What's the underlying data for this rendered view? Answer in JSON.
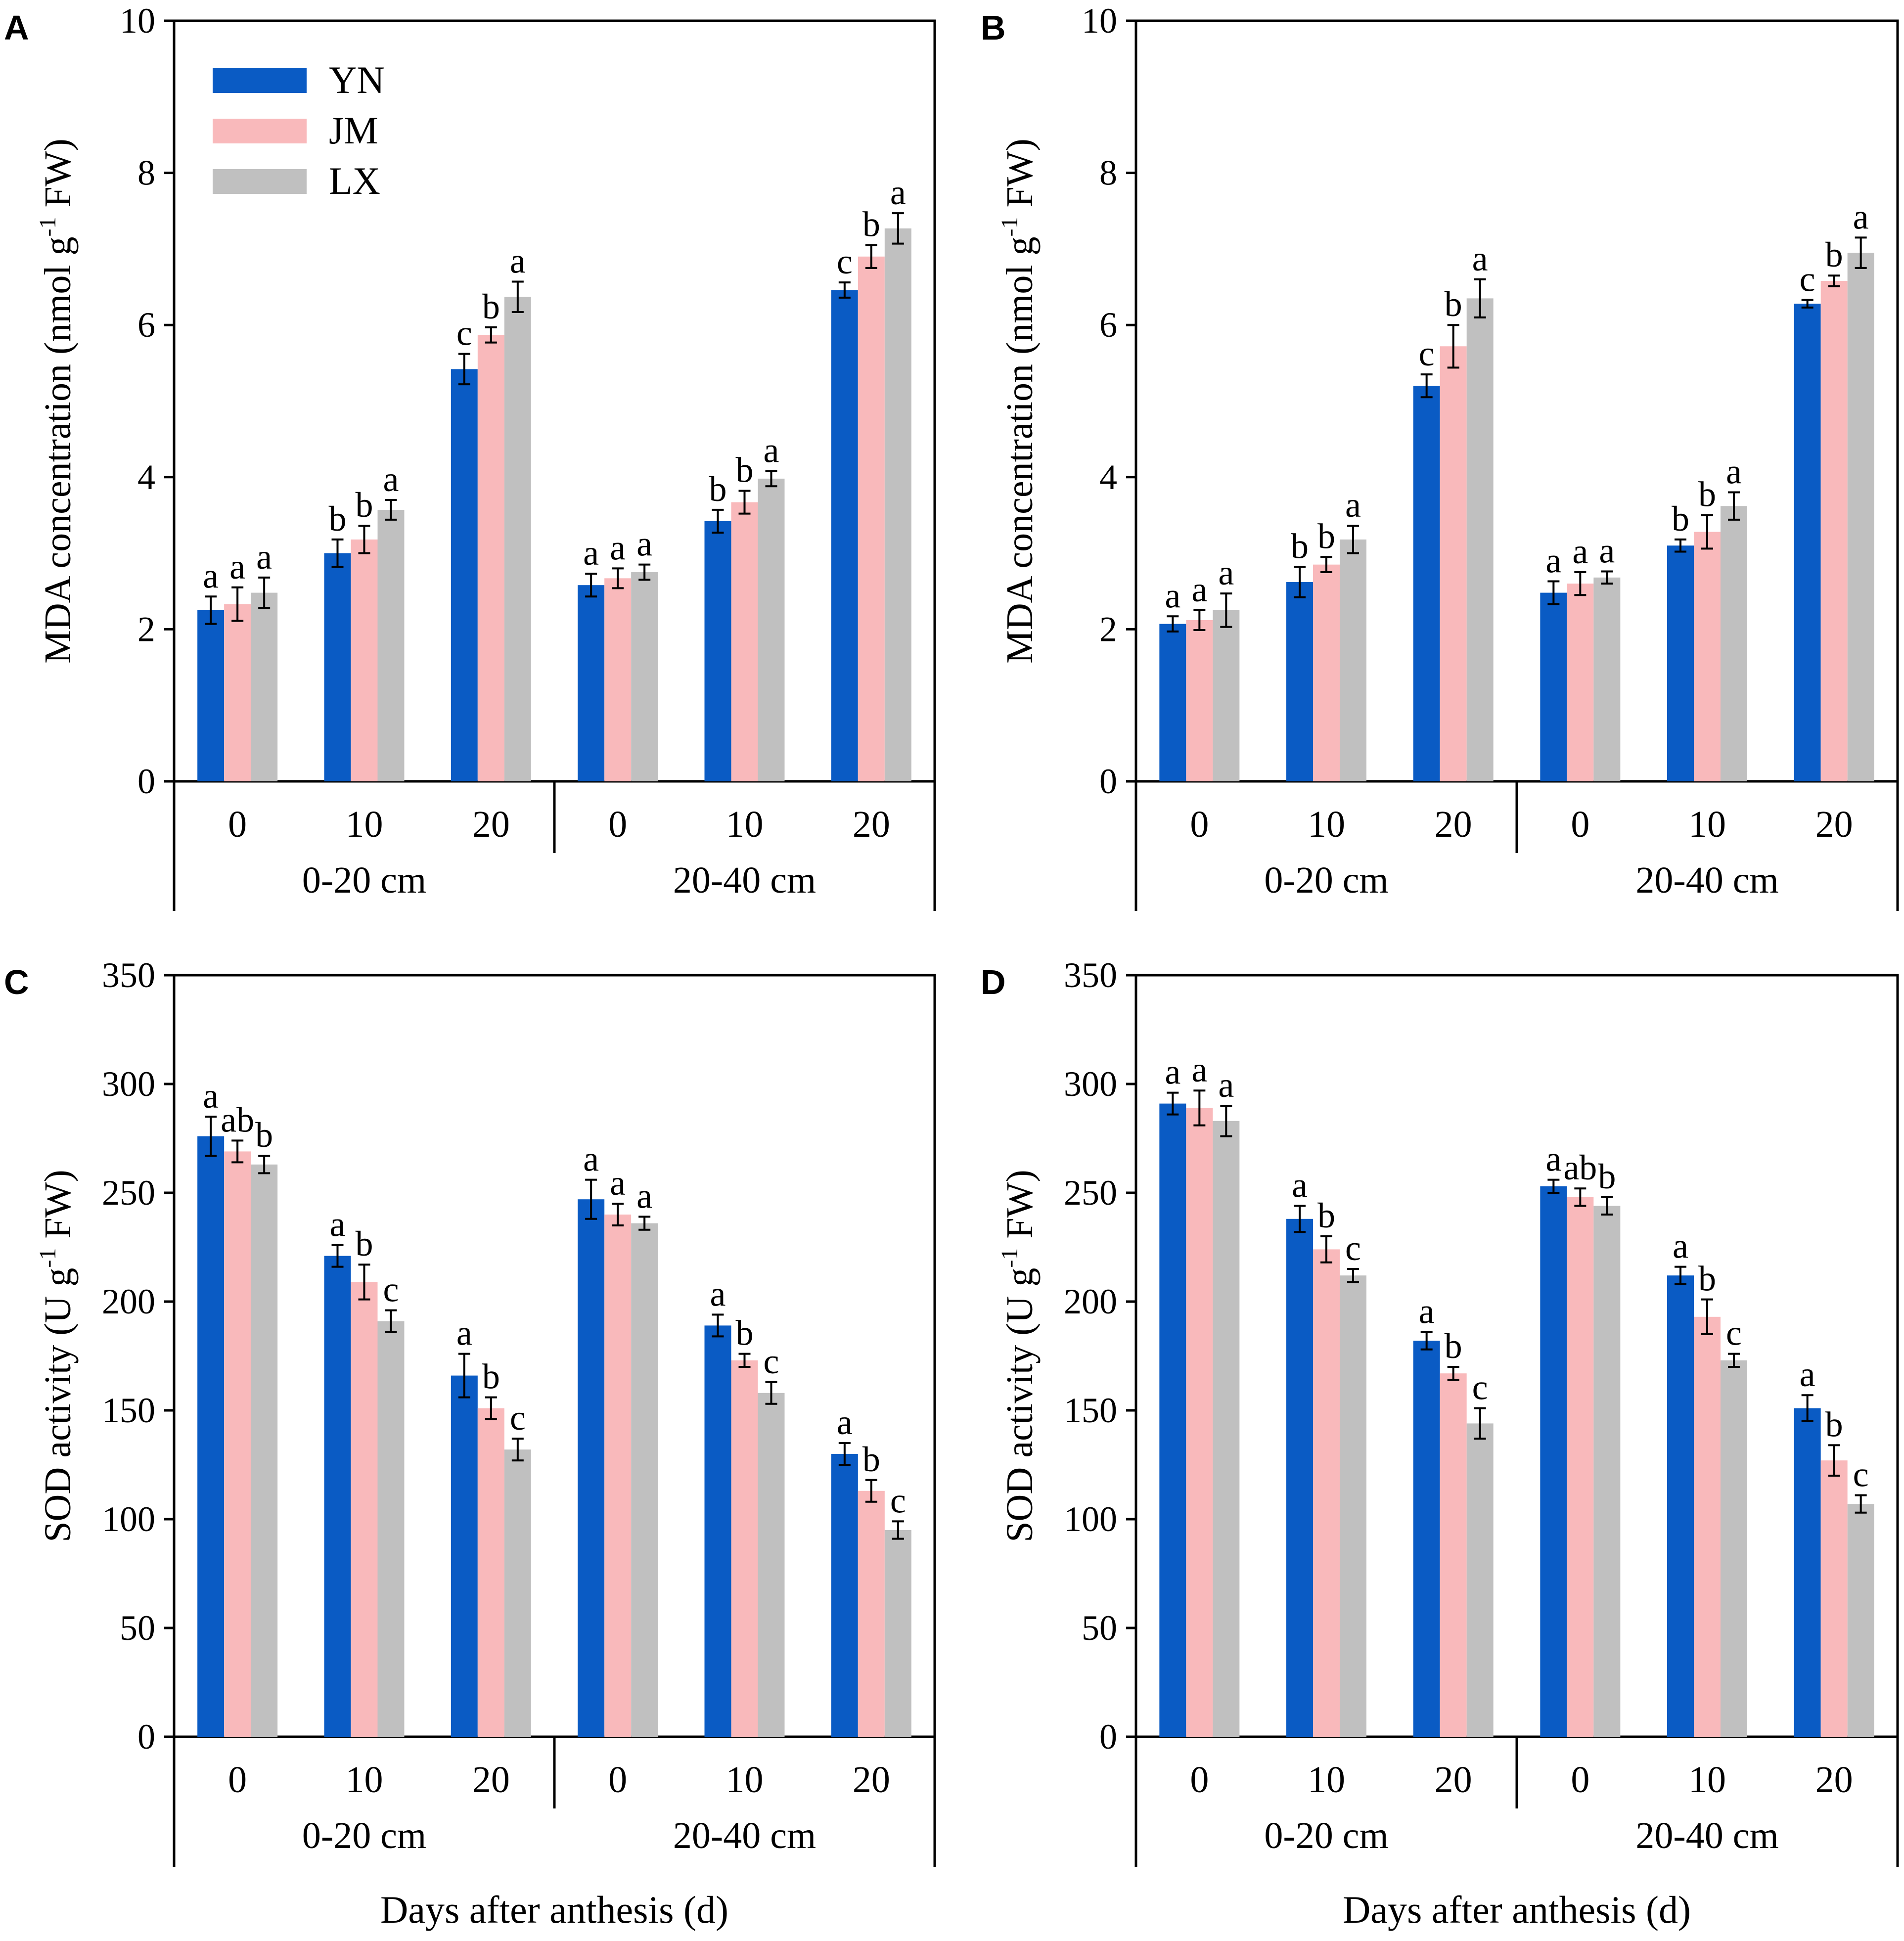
{
  "figure": {
    "x_axis_title": "Days after anthesis (d)"
  },
  "colors": {
    "YN": "#0a5bc4",
    "JM": "#f9b9bb",
    "LX": "#c0c0c0"
  },
  "legend": {
    "labels": [
      "YN",
      "JM",
      "LX"
    ],
    "placement": "top-left of panel A"
  },
  "chart_data": [
    {
      "panel": "A",
      "type": "bar",
      "ylabel": "MDA concentration (nmol g",
      "ylabel_sup": "-1",
      "ylabel_tail": " FW)",
      "ylim": [
        0,
        10
      ],
      "yticks": [
        0,
        2,
        4,
        6,
        8,
        10
      ],
      "groups": [
        "0-20 cm",
        "20-40 cm"
      ],
      "categories": [
        "0",
        "10",
        "20"
      ],
      "series_names": [
        "YN",
        "JM",
        "LX"
      ],
      "values": [
        [
          [
            2.25,
            2.33,
            2.48
          ],
          [
            3.0,
            3.18,
            3.57
          ],
          [
            5.42,
            5.87,
            6.37
          ]
        ],
        [
          [
            2.58,
            2.67,
            2.75
          ],
          [
            3.42,
            3.67,
            3.98
          ],
          [
            6.46,
            6.9,
            7.27
          ]
        ]
      ],
      "errors": [
        [
          [
            0.18,
            0.22,
            0.2
          ],
          [
            0.18,
            0.18,
            0.13
          ],
          [
            0.2,
            0.1,
            0.2
          ]
        ],
        [
          [
            0.15,
            0.13,
            0.1
          ],
          [
            0.15,
            0.15,
            0.1
          ],
          [
            0.1,
            0.15,
            0.2
          ]
        ]
      ],
      "letters": [
        [
          [
            "a",
            "a",
            "a"
          ],
          [
            "b",
            "b",
            "a"
          ],
          [
            "c",
            "b",
            "a"
          ]
        ],
        [
          [
            "a",
            "a",
            "a"
          ],
          [
            "b",
            "b",
            "a"
          ],
          [
            "c",
            "b",
            "a"
          ]
        ]
      ],
      "show_legend": true
    },
    {
      "panel": "B",
      "type": "bar",
      "ylabel": "MDA concentration (nmol g",
      "ylabel_sup": "-1",
      "ylabel_tail": " FW)",
      "ylim": [
        0,
        10
      ],
      "yticks": [
        0,
        2,
        4,
        6,
        8,
        10
      ],
      "groups": [
        "0-20 cm",
        "20-40 cm"
      ],
      "categories": [
        "0",
        "10",
        "20"
      ],
      "series_names": [
        "YN",
        "JM",
        "LX"
      ],
      "values": [
        [
          [
            2.07,
            2.12,
            2.25
          ],
          [
            2.62,
            2.85,
            3.18
          ],
          [
            5.2,
            5.72,
            6.35
          ]
        ],
        [
          [
            2.48,
            2.6,
            2.68
          ],
          [
            3.1,
            3.28,
            3.62
          ],
          [
            6.28,
            6.58,
            6.95
          ]
        ]
      ],
      "errors": [
        [
          [
            0.1,
            0.13,
            0.22
          ],
          [
            0.2,
            0.1,
            0.18
          ],
          [
            0.15,
            0.28,
            0.25
          ]
        ],
        [
          [
            0.15,
            0.15,
            0.08
          ],
          [
            0.08,
            0.22,
            0.18
          ],
          [
            0.05,
            0.07,
            0.2
          ]
        ]
      ],
      "letters": [
        [
          [
            "a",
            "a",
            "a"
          ],
          [
            "b",
            "b",
            "a"
          ],
          [
            "c",
            "b",
            "a"
          ]
        ],
        [
          [
            "a",
            "a",
            "a"
          ],
          [
            "b",
            "b",
            "a"
          ],
          [
            "c",
            "b",
            "a"
          ]
        ]
      ],
      "show_legend": false
    },
    {
      "panel": "C",
      "type": "bar",
      "ylabel": "SOD activity (U g",
      "ylabel_sup": "-1",
      "ylabel_tail": " FW)",
      "ylim": [
        0,
        350
      ],
      "yticks": [
        0,
        50,
        100,
        150,
        200,
        250,
        300,
        350
      ],
      "groups": [
        "0-20 cm",
        "20-40 cm"
      ],
      "categories": [
        "0",
        "10",
        "20"
      ],
      "series_names": [
        "YN",
        "JM",
        "LX"
      ],
      "values": [
        [
          [
            276,
            269,
            263
          ],
          [
            221,
            209,
            191
          ],
          [
            166,
            151,
            132
          ]
        ],
        [
          [
            247,
            240,
            236
          ],
          [
            189,
            173,
            158
          ],
          [
            130,
            113,
            95
          ]
        ]
      ],
      "errors": [
        [
          [
            9,
            5,
            4
          ],
          [
            5,
            8,
            5
          ],
          [
            10,
            5,
            5
          ]
        ],
        [
          [
            9,
            5,
            3
          ],
          [
            5,
            3,
            5
          ],
          [
            5,
            5,
            4
          ]
        ]
      ],
      "letters": [
        [
          [
            "a",
            "ab",
            "b"
          ],
          [
            "a",
            "b",
            "c"
          ],
          [
            "a",
            "b",
            "c"
          ]
        ],
        [
          [
            "a",
            "a",
            "a"
          ],
          [
            "a",
            "b",
            "c"
          ],
          [
            "a",
            "b",
            "c"
          ]
        ]
      ],
      "show_legend": false
    },
    {
      "panel": "D",
      "type": "bar",
      "ylabel": "SOD activity (U g",
      "ylabel_sup": "-1",
      "ylabel_tail": " FW)",
      "ylim": [
        0,
        350
      ],
      "yticks": [
        0,
        50,
        100,
        150,
        200,
        250,
        300,
        350
      ],
      "groups": [
        "0-20 cm",
        "20-40 cm"
      ],
      "categories": [
        "0",
        "10",
        "20"
      ],
      "series_names": [
        "YN",
        "JM",
        "LX"
      ],
      "values": [
        [
          [
            291,
            289,
            283
          ],
          [
            238,
            224,
            212
          ],
          [
            182,
            167,
            144
          ]
        ],
        [
          [
            253,
            248,
            244
          ],
          [
            212,
            193,
            173
          ],
          [
            151,
            127,
            107
          ]
        ]
      ],
      "errors": [
        [
          [
            5,
            8,
            7
          ],
          [
            6,
            6,
            3
          ],
          [
            4,
            3,
            7
          ]
        ],
        [
          [
            3,
            4,
            4
          ],
          [
            4,
            8,
            3
          ],
          [
            6,
            7,
            4
          ]
        ]
      ],
      "letters": [
        [
          [
            "a",
            "a",
            "a"
          ],
          [
            "a",
            "b",
            "c"
          ],
          [
            "a",
            "b",
            "c"
          ]
        ],
        [
          [
            "a",
            "ab",
            "b"
          ],
          [
            "a",
            "b",
            "c"
          ],
          [
            "a",
            "b",
            "c"
          ]
        ]
      ],
      "show_legend": false
    }
  ]
}
